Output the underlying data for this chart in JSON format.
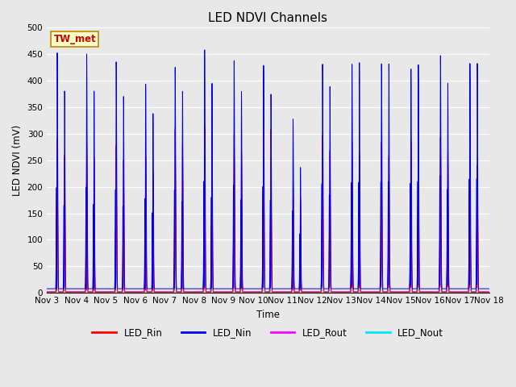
{
  "title": "LED NDVI Channels",
  "xlabel": "Time",
  "ylabel": "LED NDVI (mV)",
  "ylim": [
    0,
    500
  ],
  "xlim_days": [
    3,
    18
  ],
  "annotation_text": "TW_met",
  "legend": [
    {
      "label": "LED_Rin",
      "color": "#ff0000"
    },
    {
      "label": "LED_Nin",
      "color": "#0000ee"
    },
    {
      "label": "LED_Rout",
      "color": "#ff00ff"
    },
    {
      "label": "LED_Nout",
      "color": "#00e5ff"
    }
  ],
  "spike_days": [
    3,
    4,
    5,
    6,
    7,
    8,
    9,
    10,
    11,
    12,
    13,
    14,
    15,
    16,
    17
  ],
  "nin_peaks": [
    452,
    450,
    435,
    393,
    425,
    458,
    438,
    429,
    328,
    432,
    432,
    432,
    422,
    447,
    432
  ],
  "rin_peaks": [
    290,
    285,
    278,
    258,
    310,
    315,
    300,
    340,
    205,
    298,
    290,
    285,
    290,
    293,
    260
  ],
  "rout_peaks": [
    285,
    282,
    273,
    252,
    305,
    312,
    296,
    336,
    202,
    292,
    285,
    282,
    285,
    290,
    258
  ],
  "nout_peaks": [
    42,
    45,
    40,
    44,
    100,
    103,
    87,
    90,
    57,
    95,
    94,
    92,
    91,
    95,
    85
  ],
  "nin_peaks2": [
    380,
    380,
    370,
    338,
    380,
    395,
    380,
    375,
    237,
    390,
    435,
    432,
    430,
    395,
    432
  ],
  "rin_peaks2": [
    260,
    255,
    250,
    230,
    280,
    290,
    270,
    310,
    180,
    270,
    265,
    260,
    265,
    268,
    240
  ],
  "rout_peaks2": [
    255,
    250,
    245,
    226,
    275,
    285,
    265,
    305,
    175,
    265,
    260,
    255,
    260,
    263,
    235
  ],
  "nout_peaks2": [
    38,
    40,
    36,
    40,
    95,
    98,
    80,
    85,
    53,
    90,
    90,
    88,
    87,
    91,
    80
  ],
  "background_color": "#e8e8e8",
  "title_fontsize": 11,
  "tick_label_fontsize": 7.5
}
